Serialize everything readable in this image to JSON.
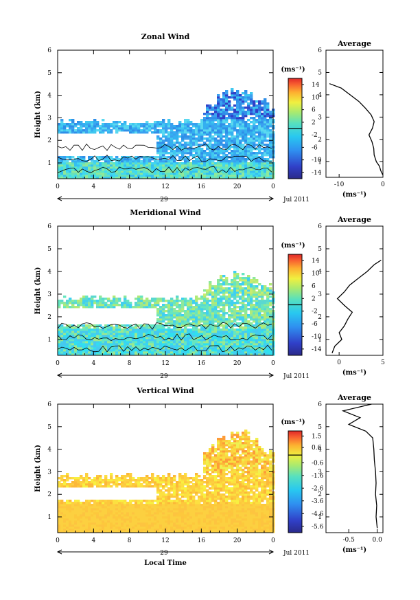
{
  "chart_data": [
    {
      "type": "heatmap",
      "title": "Zonal Wind",
      "ylabel": "Height (km)",
      "xlim": [
        0,
        24
      ],
      "ylim": [
        0.3,
        6
      ],
      "x_ticks": [
        "0",
        "4",
        "8",
        "12",
        "16",
        "20",
        "0"
      ],
      "y_ticks": [
        "1",
        "2",
        "3",
        "4",
        "5",
        "6"
      ],
      "day_label": "29",
      "month_label": "Jul 2011",
      "colorbar": {
        "unit": "(ms⁻¹)",
        "ticks": [
          "14",
          "10",
          "6",
          "2",
          "-2",
          "-6",
          "-10",
          "-14"
        ],
        "range": [
          -16,
          16
        ]
      },
      "coverage": {
        "bottom_band_heights_km": [
          0.4,
          1.1
        ],
        "upper_band_heights_km": [
          1.1,
          3.0
        ],
        "tower_hours": [
          16,
          24
        ],
        "tower_top_km": 4.4
      },
      "profile": {
        "title": "Average",
        "xlabel": "(ms⁻¹)",
        "x_ticks": [
          "-10",
          "0"
        ],
        "xlim": [
          -13,
          0
        ],
        "heights_km": [
          0.4,
          0.6,
          0.8,
          1.0,
          1.3,
          1.6,
          1.9,
          2.2,
          2.5,
          2.8,
          3.1,
          3.4,
          3.7,
          4.0,
          4.3,
          4.5
        ],
        "values": [
          0,
          -0.5,
          -0.8,
          -1.5,
          -2.0,
          -2.1,
          -2.5,
          -3.2,
          -2.4,
          -2.0,
          -2.7,
          -4.0,
          -5.5,
          -7.5,
          -9.5,
          -12.2
        ]
      }
    },
    {
      "type": "heatmap",
      "title": "Meridional Wind",
      "ylabel": "Height (km)",
      "xlim": [
        0,
        24
      ],
      "ylim": [
        0.3,
        6
      ],
      "x_ticks": [
        "0",
        "4",
        "8",
        "12",
        "16",
        "20",
        "0"
      ],
      "y_ticks": [
        "1",
        "2",
        "3",
        "4",
        "5",
        "6"
      ],
      "day_label": "29",
      "month_label": "Jul 2011",
      "colorbar": {
        "unit": "(ms⁻¹)",
        "ticks": [
          "14",
          "10",
          "6",
          "2",
          "-2",
          "-6",
          "-10",
          "-14"
        ],
        "range": [
          -16,
          16
        ]
      },
      "coverage": {
        "bottom_band_heights_km": [
          0.3,
          1.5
        ],
        "upper_band_heights_km": [
          1.5,
          3.0
        ],
        "tower_hours": [
          16,
          24
        ],
        "tower_top_km": 4.1
      },
      "profile": {
        "title": "Average",
        "xlabel": "(ms⁻¹)",
        "x_ticks": [
          "0",
          "5"
        ],
        "xlim": [
          -1.5,
          5
        ],
        "heights_km": [
          0.4,
          0.7,
          1.0,
          1.3,
          1.6,
          1.9,
          2.2,
          2.5,
          2.8,
          3.1,
          3.4,
          3.7,
          4.0,
          4.3,
          4.5
        ],
        "values": [
          -0.8,
          -0.5,
          0.3,
          0.0,
          0.6,
          1.0,
          1.5,
          0.6,
          -0.2,
          0.6,
          1.2,
          2.2,
          3.2,
          4.0,
          4.8
        ]
      }
    },
    {
      "type": "heatmap",
      "title": "Vertical Wind",
      "ylabel": "Height (km)",
      "xlabel": "Local Time",
      "xlim": [
        0,
        24
      ],
      "ylim": [
        0.3,
        6
      ],
      "x_ticks": [
        "0",
        "4",
        "8",
        "12",
        "16",
        "20",
        "0"
      ],
      "y_ticks": [
        "1",
        "2",
        "3",
        "4",
        "5",
        "6"
      ],
      "day_label": "29",
      "month_label": "Jul 2011",
      "colorbar": {
        "unit": "(ms⁻¹)",
        "ticks": [
          "1.5",
          "0.6",
          "-0.6",
          "-1.6",
          "-2.6",
          "-3.6",
          "-4.6",
          "-5.6"
        ],
        "range": [
          -6.1,
          1.9
        ]
      },
      "coverage": {
        "bottom_band_heights_km": [
          0.3,
          1.6
        ],
        "upper_band_heights_km": [
          1.6,
          3.0
        ],
        "tower_hours": [
          16,
          24
        ],
        "tower_top_km": 5.0
      },
      "profile": {
        "title": "Average",
        "xlabel": "(ms⁻¹)",
        "x_ticks": [
          "-0.5",
          "0.0"
        ],
        "xlim": [
          -0.9,
          0.1
        ],
        "heights_km": [
          0.5,
          1.0,
          1.5,
          2.0,
          2.5,
          3.0,
          3.5,
          4.0,
          4.5,
          4.8,
          5.1,
          5.4,
          5.7,
          6.0
        ],
        "values": [
          0.0,
          -0.02,
          -0.01,
          -0.03,
          -0.02,
          -0.03,
          -0.05,
          -0.06,
          -0.08,
          -0.2,
          -0.5,
          -0.3,
          -0.6,
          -0.1
        ]
      }
    }
  ]
}
